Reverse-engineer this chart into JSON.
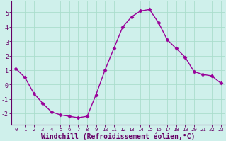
{
  "x": [
    0,
    1,
    2,
    3,
    4,
    5,
    6,
    7,
    8,
    9,
    10,
    11,
    12,
    13,
    14,
    15,
    16,
    17,
    18,
    19,
    20,
    21,
    22,
    23
  ],
  "y": [
    1.1,
    0.5,
    -0.6,
    -1.3,
    -1.9,
    -2.1,
    -2.2,
    -2.3,
    -2.2,
    -0.7,
    1.0,
    2.5,
    4.0,
    4.7,
    5.1,
    5.2,
    4.3,
    3.1,
    2.5,
    1.9,
    0.9,
    0.7,
    0.6,
    0.1
  ],
  "xlabel": "Windchill (Refroidissement éolien,°C)",
  "xlim": [
    -0.5,
    23.5
  ],
  "ylim": [
    -2.8,
    5.8
  ],
  "xticks": [
    0,
    1,
    2,
    3,
    4,
    5,
    6,
    7,
    8,
    9,
    10,
    11,
    12,
    13,
    14,
    15,
    16,
    17,
    18,
    19,
    20,
    21,
    22,
    23
  ],
  "yticks": [
    -2,
    -1,
    0,
    1,
    2,
    3,
    4,
    5
  ],
  "line_color": "#990099",
  "marker": "D",
  "marker_size": 2.5,
  "bg_color": "#cff0eb",
  "grid_color": "#aaddcc",
  "spine_color": "#660066",
  "tick_color": "#660066",
  "label_color": "#660066",
  "xtick_fontsize": 5.2,
  "ytick_fontsize": 6.0,
  "xlabel_fontsize": 7.0
}
